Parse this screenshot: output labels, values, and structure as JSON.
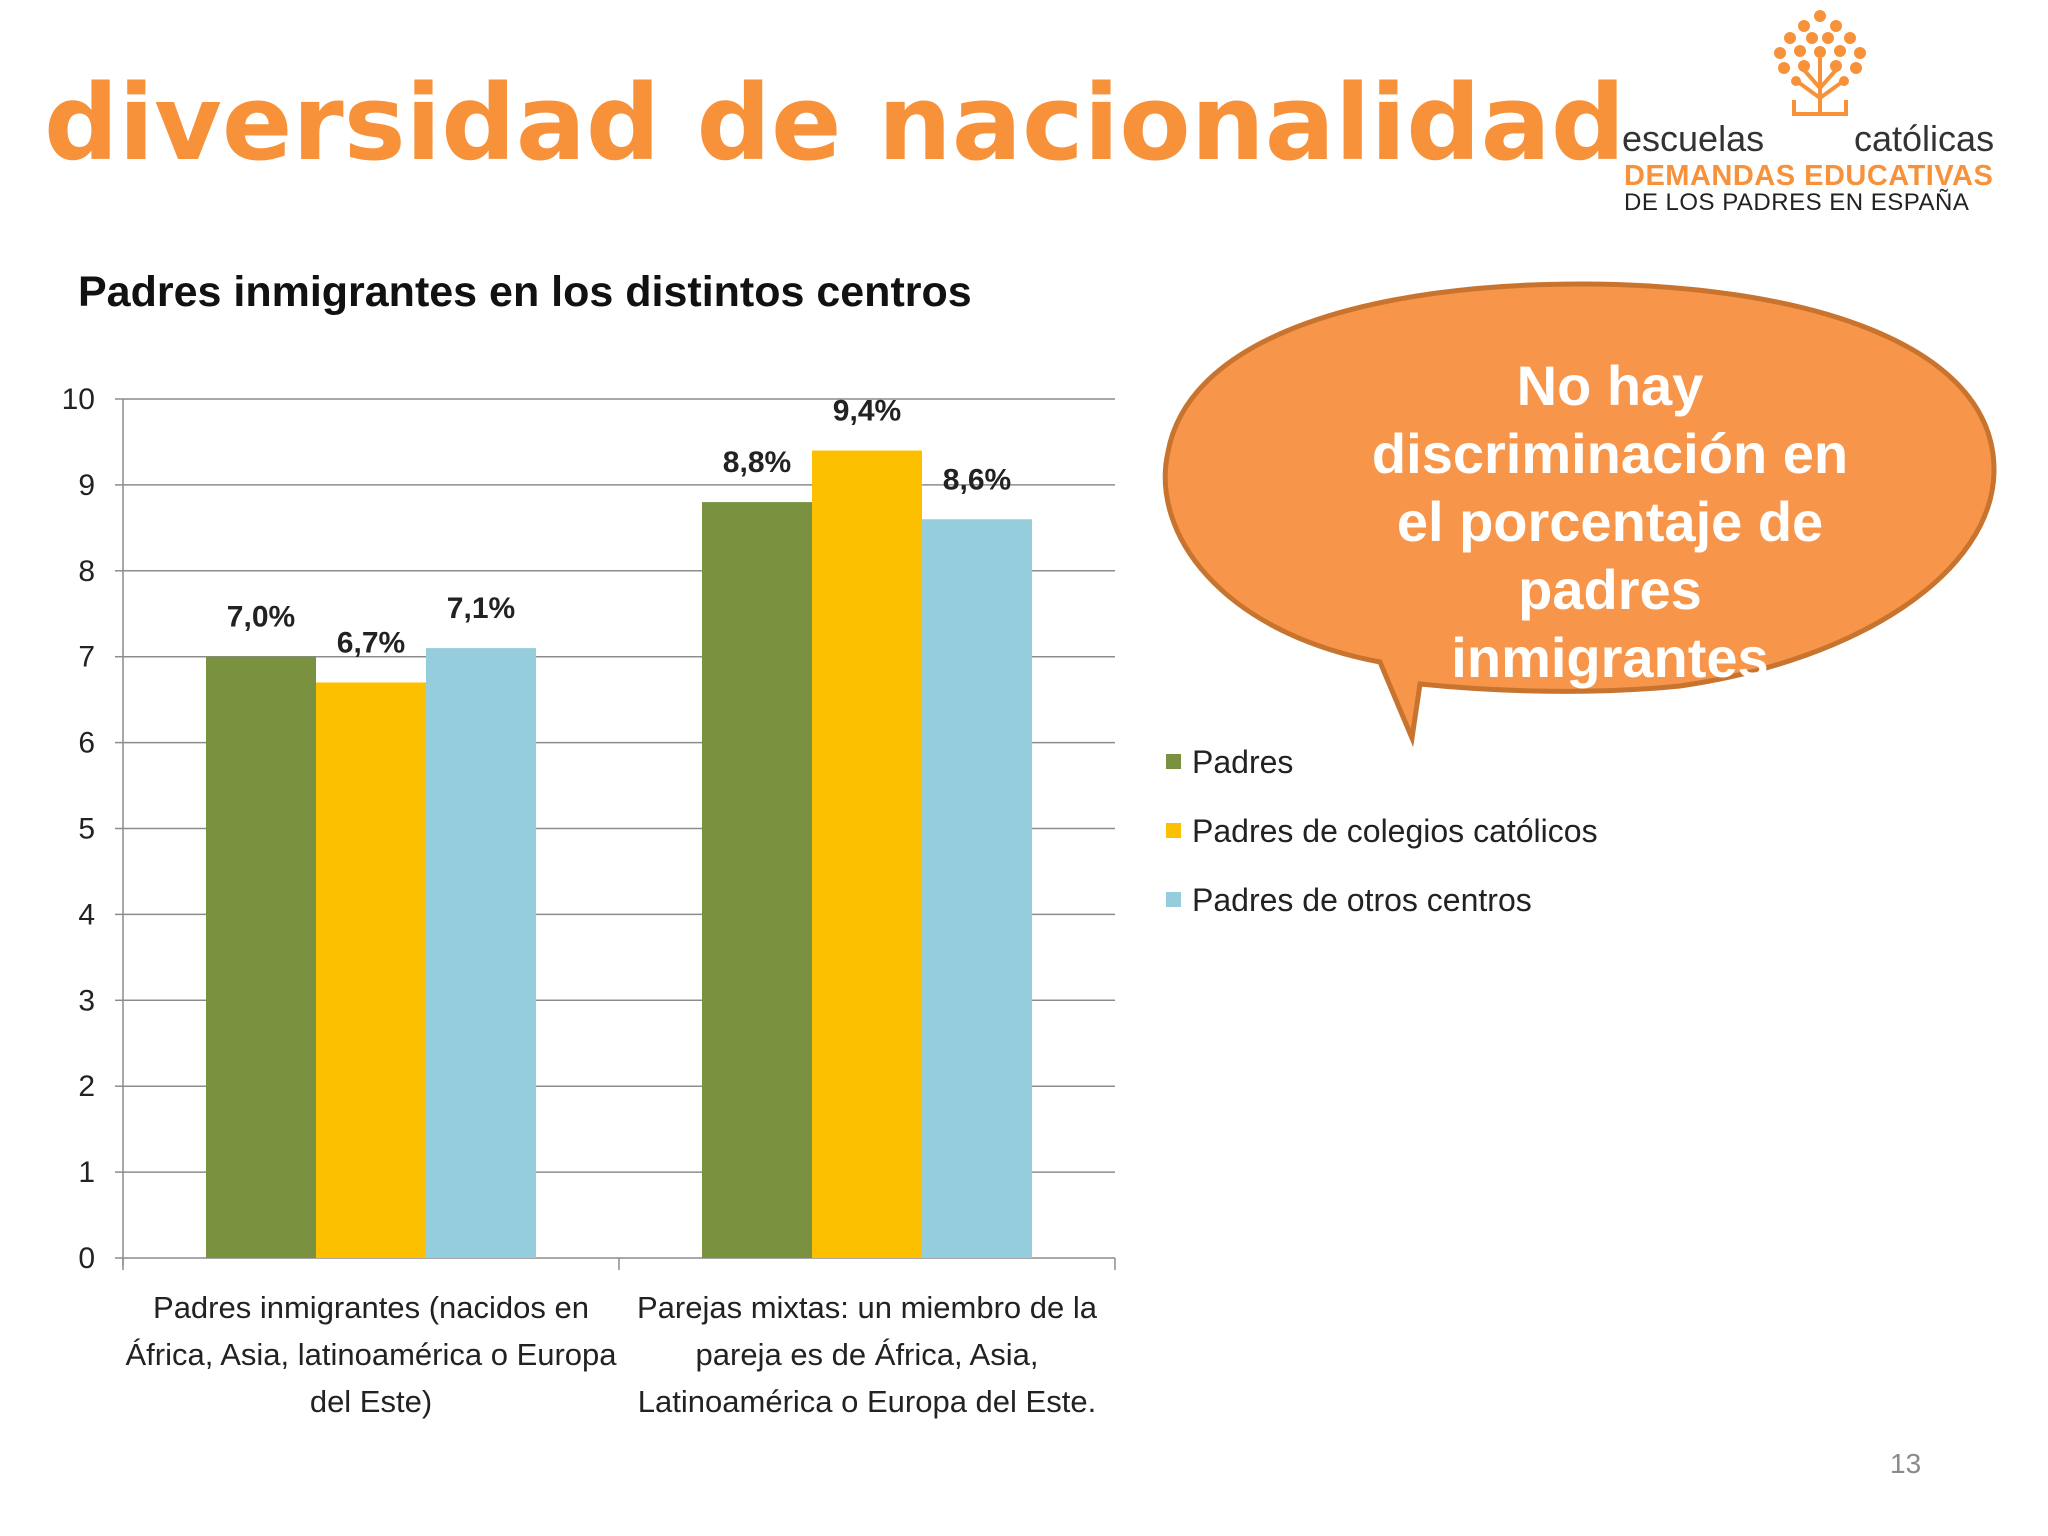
{
  "slide": {
    "title": "diversidad de nacionalidad",
    "page_number": "13",
    "brand_color": "#f7923a"
  },
  "logo": {
    "word_left": "escuelas",
    "word_right": "católicas",
    "tagline_1": "DEMANDAS EDUCATIVAS",
    "tagline_2": "DE LOS PADRES EN ESPAÑA",
    "icon": "tree-of-dots-icon"
  },
  "callout": {
    "text": "No hay discriminación en el porcentaje de padres inmigrantes",
    "fill_color": "#f7964b",
    "border_color": "#c8742f"
  },
  "chart_data": {
    "type": "bar",
    "title": "Padres inmigrantes en los distintos centros",
    "categories": [
      "Padres inmigrantes (nacidos en África, Asia, latinoamérica o Europa del Este)",
      "Parejas mixtas: un miembro de la pareja es de África, Asia, Latinoamérica o Europa del Este."
    ],
    "category_lines": [
      [
        "Padres inmigrantes (nacidos en",
        "África, Asia, latinoamérica o Europa",
        "del Este)"
      ],
      [
        "Parejas mixtas: un miembro de la",
        "pareja es de África, Asia,",
        "Latinoamérica o Europa del Este."
      ]
    ],
    "series": [
      {
        "name": "Padres",
        "values": [
          7.0,
          8.8
        ],
        "labels": [
          "7,0%",
          "8,8%"
        ],
        "color": "#7a9140"
      },
      {
        "name": "Padres de colegios católicos",
        "values": [
          6.7,
          9.4
        ],
        "labels": [
          "6,7%",
          "9,4%"
        ],
        "color": "#fcc000"
      },
      {
        "name": "Padres de otros centros",
        "values": [
          7.1,
          8.6
        ],
        "labels": [
          "7,1%",
          "8,6%"
        ],
        "color": "#96cddc"
      }
    ],
    "ylim": [
      0,
      10
    ],
    "yticks": [
      "0",
      "1",
      "2",
      "3",
      "4",
      "5",
      "6",
      "7",
      "8",
      "9",
      "10"
    ],
    "grid": true,
    "legend_position": "right"
  }
}
